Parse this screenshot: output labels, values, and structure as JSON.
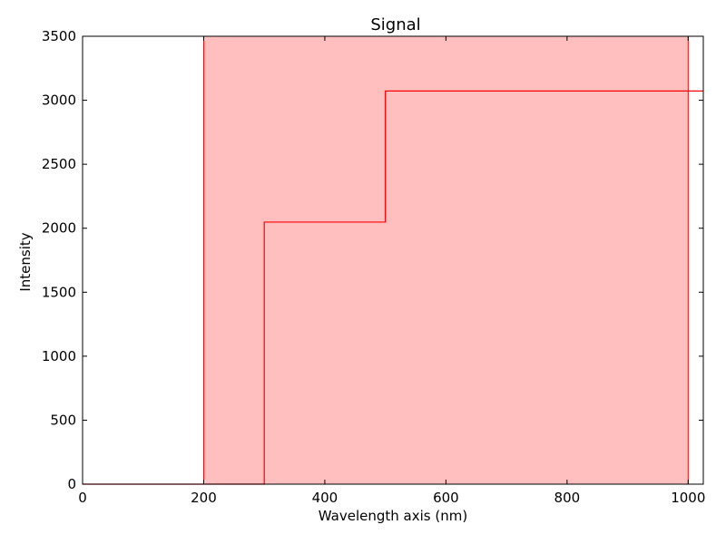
{
  "chart_data": {
    "type": "line",
    "title": "Signal",
    "xlabel": "Wavelength axis (nm)",
    "ylabel": "Intensity",
    "xlim": [
      0,
      1025
    ],
    "ylim": [
      0,
      3500
    ],
    "xticks": [
      0,
      200,
      400,
      600,
      800,
      1000
    ],
    "yticks": [
      0,
      500,
      1000,
      1500,
      2000,
      2500,
      3000,
      3500
    ],
    "grid": false,
    "highlight_region": {
      "x_start": 200,
      "x_end": 1000,
      "fill_color": "#ffbfbf",
      "edge_color": "#ff0000"
    },
    "series": [
      {
        "style": "step",
        "color": "#ff0000",
        "points": [
          {
            "x": 0,
            "y": 0
          },
          {
            "x": 300,
            "y": 0
          },
          {
            "x": 300,
            "y": 2048
          },
          {
            "x": 500,
            "y": 2048
          },
          {
            "x": 500,
            "y": 3072
          },
          {
            "x": 1025,
            "y": 3072
          }
        ]
      }
    ]
  }
}
